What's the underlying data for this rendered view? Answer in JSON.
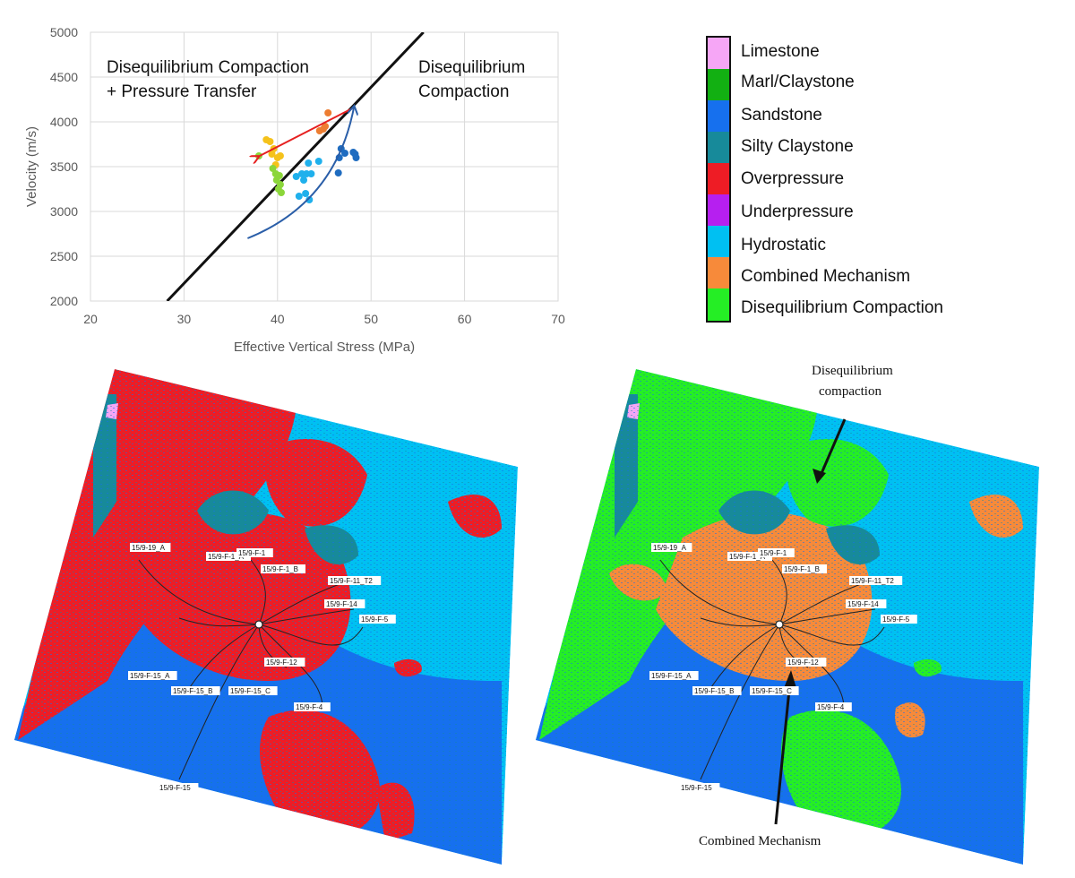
{
  "chart_data": {
    "type": "scatter",
    "xlabel": "Effective Vertical Stress (MPa)",
    "ylabel": "Velocity (m/s)",
    "xlim": [
      20,
      70
    ],
    "ylim": [
      2000,
      5000
    ],
    "xticks": [
      "20",
      "30",
      "40",
      "50",
      "60",
      "70"
    ],
    "yticks": [
      "2000",
      "2500",
      "3000",
      "3500",
      "4000",
      "4500",
      "5000"
    ],
    "grid": true,
    "annotations": [
      {
        "line1": "Disequilibrium Compaction",
        "line2": "+ Pressure Transfer"
      },
      {
        "line1": "Disequilibrium",
        "line2": "Compaction"
      }
    ],
    "trend_line": {
      "x": [
        28.2,
        55.6
      ],
      "y": [
        2000,
        5000
      ]
    },
    "series": [
      {
        "color": "#f5c21b",
        "points": [
          [
            38.8,
            3800
          ],
          [
            39.2,
            3780
          ],
          [
            39.6,
            3700
          ],
          [
            39.4,
            3640
          ],
          [
            40.0,
            3600
          ],
          [
            40.3,
            3620
          ],
          [
            39.8,
            3520
          ]
        ]
      },
      {
        "color": "#8bd63a",
        "points": [
          [
            38.0,
            3620
          ],
          [
            39.5,
            3480
          ],
          [
            39.8,
            3420
          ],
          [
            40.2,
            3400
          ],
          [
            39.9,
            3350
          ],
          [
            40.3,
            3300
          ],
          [
            40.1,
            3250
          ],
          [
            40.4,
            3210
          ]
        ]
      },
      {
        "color": "#ed7d31",
        "points": [
          [
            44.5,
            3900
          ],
          [
            45.1,
            3950
          ],
          [
            45.4,
            4100
          ],
          [
            44.9,
            3920
          ]
        ]
      },
      {
        "color": "#1fb0ec",
        "points": [
          [
            42.0,
            3390
          ],
          [
            42.3,
            3170
          ],
          [
            42.8,
            3350
          ],
          [
            43.1,
            3420
          ],
          [
            43.0,
            3200
          ],
          [
            43.4,
            3130
          ],
          [
            43.3,
            3540
          ],
          [
            44.4,
            3560
          ],
          [
            43.6,
            3420
          ],
          [
            42.6,
            3420
          ]
        ]
      },
      {
        "color": "#1f6cc0",
        "points": [
          [
            46.6,
            3600
          ],
          [
            46.8,
            3700
          ],
          [
            47.2,
            3650
          ],
          [
            46.5,
            3430
          ],
          [
            48.1,
            3660
          ],
          [
            48.4,
            3600
          ],
          [
            48.3,
            3640
          ]
        ]
      }
    ],
    "arrows": [
      {
        "color": "#e62020",
        "from": [
          48.0,
          4150
        ],
        "to": [
          37.9,
          3610
        ]
      },
      {
        "color": "#2a5ea8",
        "from": [
          36.8,
          2700
        ],
        "to": [
          48.2,
          4180
        ]
      }
    ]
  },
  "legend": [
    {
      "label": "Limestone",
      "color": "#f6a6f6"
    },
    {
      "label": "Marl/Claystone",
      "color": "#12b012"
    },
    {
      "label": "Sandstone",
      "color": "#1670ee"
    },
    {
      "label": "Silty Claystone",
      "color": "#178a9a"
    },
    {
      "label": "Overpressure",
      "color": "#ee1c25"
    },
    {
      "label": "Underpressure",
      "color": "#b61ff0"
    },
    {
      "label": "Hydrostatic",
      "color": "#00c0f2"
    },
    {
      "label": "Combined Mechanism",
      "color": "#f78a3a"
    },
    {
      "label": "Disequilibrium Compaction",
      "color": "#25ee25"
    }
  ],
  "well_labels": [
    "15/9-19_A",
    "15/9-F-1_A",
    "15/9-F-1",
    "15/9-F-1_B",
    "15/9-F-11_T2",
    "15/9-F-14",
    "15/9-F-5",
    "15/9-F-12",
    "15/9-F-15_A",
    "15/9-F-15_B",
    "15/9-F-15_C",
    "15/9-F-4",
    "15/9-F-15"
  ],
  "map_annotations": {
    "top_line1": "Disequilibrium",
    "top_line2": "compaction",
    "bottom": "Combined Mechanism"
  }
}
